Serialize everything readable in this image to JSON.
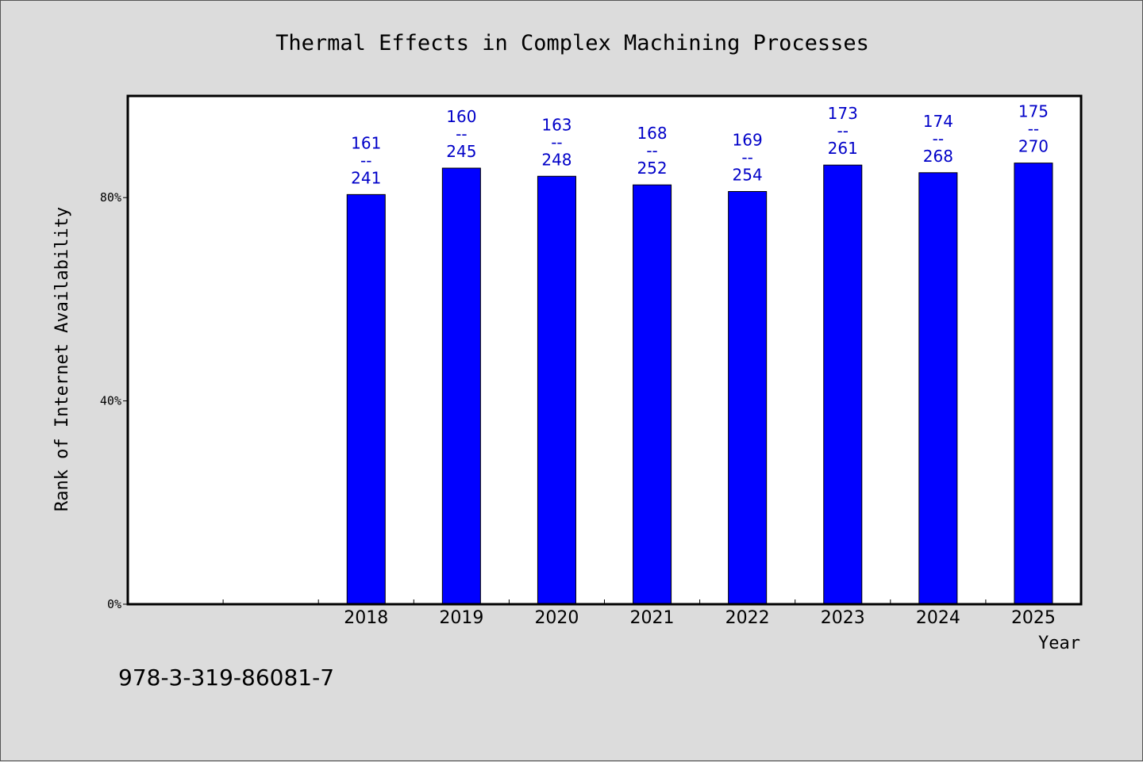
{
  "chart_data": {
    "type": "bar",
    "title": "Thermal Effects in Complex Machining Processes",
    "xlabel": "Year",
    "ylabel": "Rank of Internet Availability",
    "categories": [
      "",
      "",
      "2018",
      "2019",
      "2020",
      "2021",
      "2022",
      "2023",
      "2024",
      "2025"
    ],
    "values": [
      null,
      null,
      80.6,
      85.8,
      84.2,
      82.5,
      81.2,
      86.4,
      84.9,
      86.8
    ],
    "data_labels": [
      null,
      null,
      [
        "161",
        "--",
        "241"
      ],
      [
        "160",
        "--",
        "245"
      ],
      [
        "163",
        "--",
        "248"
      ],
      [
        "168",
        "--",
        "252"
      ],
      [
        "169",
        "--",
        "254"
      ],
      [
        "173",
        "--",
        "261"
      ],
      [
        "174",
        "--",
        "268"
      ],
      [
        "175",
        "--",
        "270"
      ]
    ],
    "ylim": [
      0,
      100
    ],
    "yticks": [
      0,
      40,
      80
    ],
    "ytick_labels": [
      "0%",
      "40%",
      "80%"
    ],
    "bar_color": "#0000ff",
    "label_color": "#0000c8",
    "grid": false,
    "legend": "none"
  },
  "footer_text": "978-3-319-86081-7"
}
